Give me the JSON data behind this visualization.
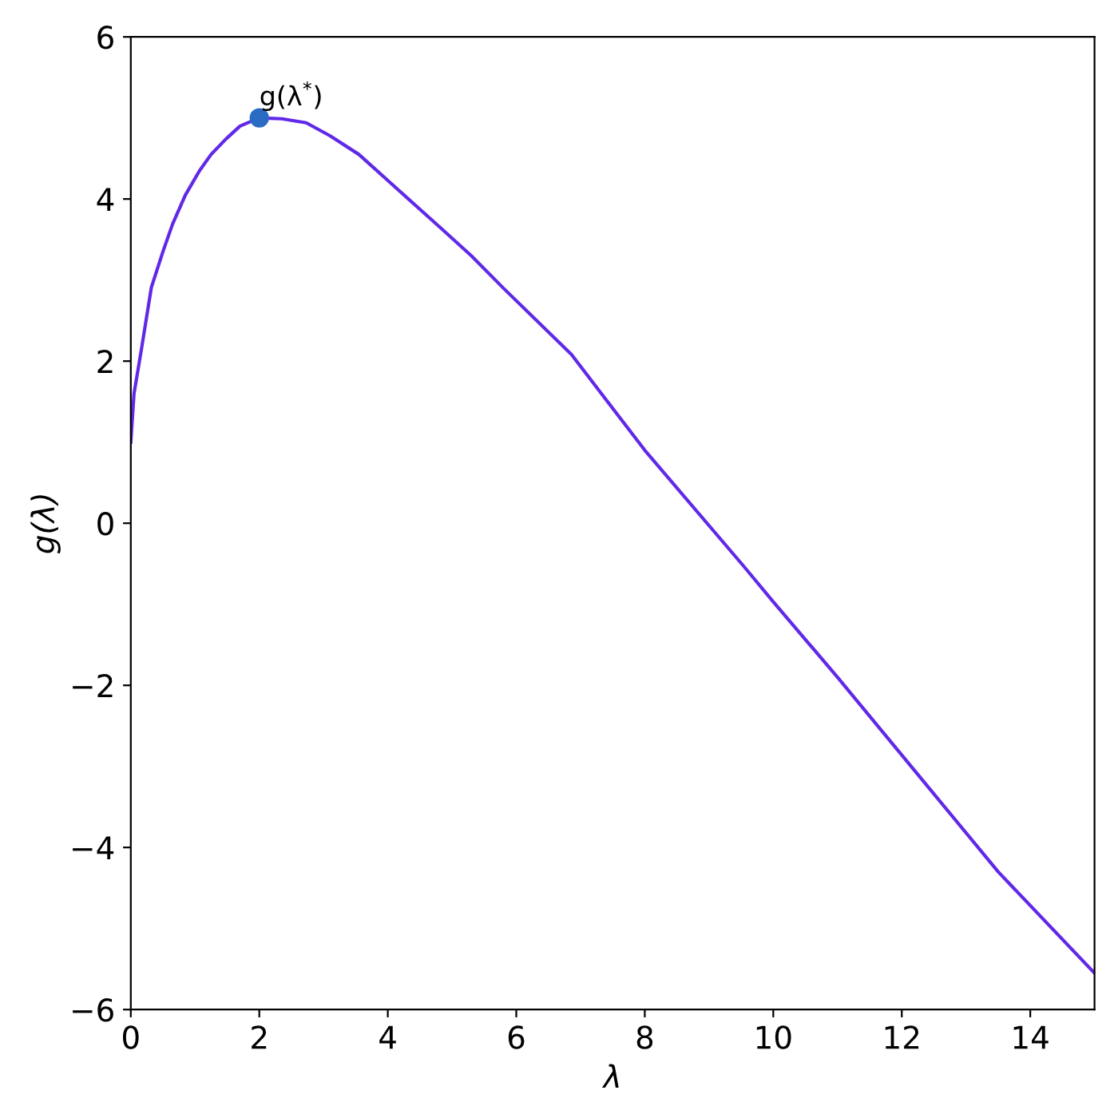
{
  "chart_data": {
    "type": "line",
    "xlabel": "λ",
    "ylabel": "g(λ)",
    "xlim": [
      0,
      15
    ],
    "ylim": [
      -6,
      6
    ],
    "xticks": [
      0,
      2,
      4,
      6,
      8,
      10,
      12,
      14
    ],
    "yticks": [
      -6,
      -4,
      -2,
      0,
      2,
      4,
      6
    ],
    "grid": false,
    "legend": false,
    "series": [
      {
        "color": "#6128e8",
        "marker": "none",
        "line_style": "solid",
        "x": [
          0,
          0.05,
          0.16,
          0.32,
          0.5,
          0.65,
          0.85,
          1.07,
          1.25,
          1.48,
          1.7,
          2.0,
          2.35,
          2.73,
          3.1,
          3.55,
          4.18,
          4.8,
          5.3,
          5.8,
          6.86,
          8,
          9.55,
          10,
          11,
          12.24,
          13.5,
          15
        ],
        "values": [
          1.0,
          1.6,
          2.12,
          2.91,
          3.35,
          3.69,
          4.05,
          4.35,
          4.55,
          4.74,
          4.9,
          5.0,
          4.99,
          4.94,
          4.78,
          4.55,
          4.1,
          3.66,
          3.3,
          2.9,
          2.08,
          0.9,
          -0.54,
          -0.97,
          -1.9,
          -3.09,
          -4.3,
          -5.55
        ]
      },
      {
        "type": "scatter",
        "color": "#2a6cc4",
        "marker": "circle",
        "x": [
          2
        ],
        "values": [
          5
        ]
      }
    ],
    "annotations": [
      {
        "text": "g(λ$^{*}$)",
        "x": 2,
        "y": 5
      }
    ]
  }
}
